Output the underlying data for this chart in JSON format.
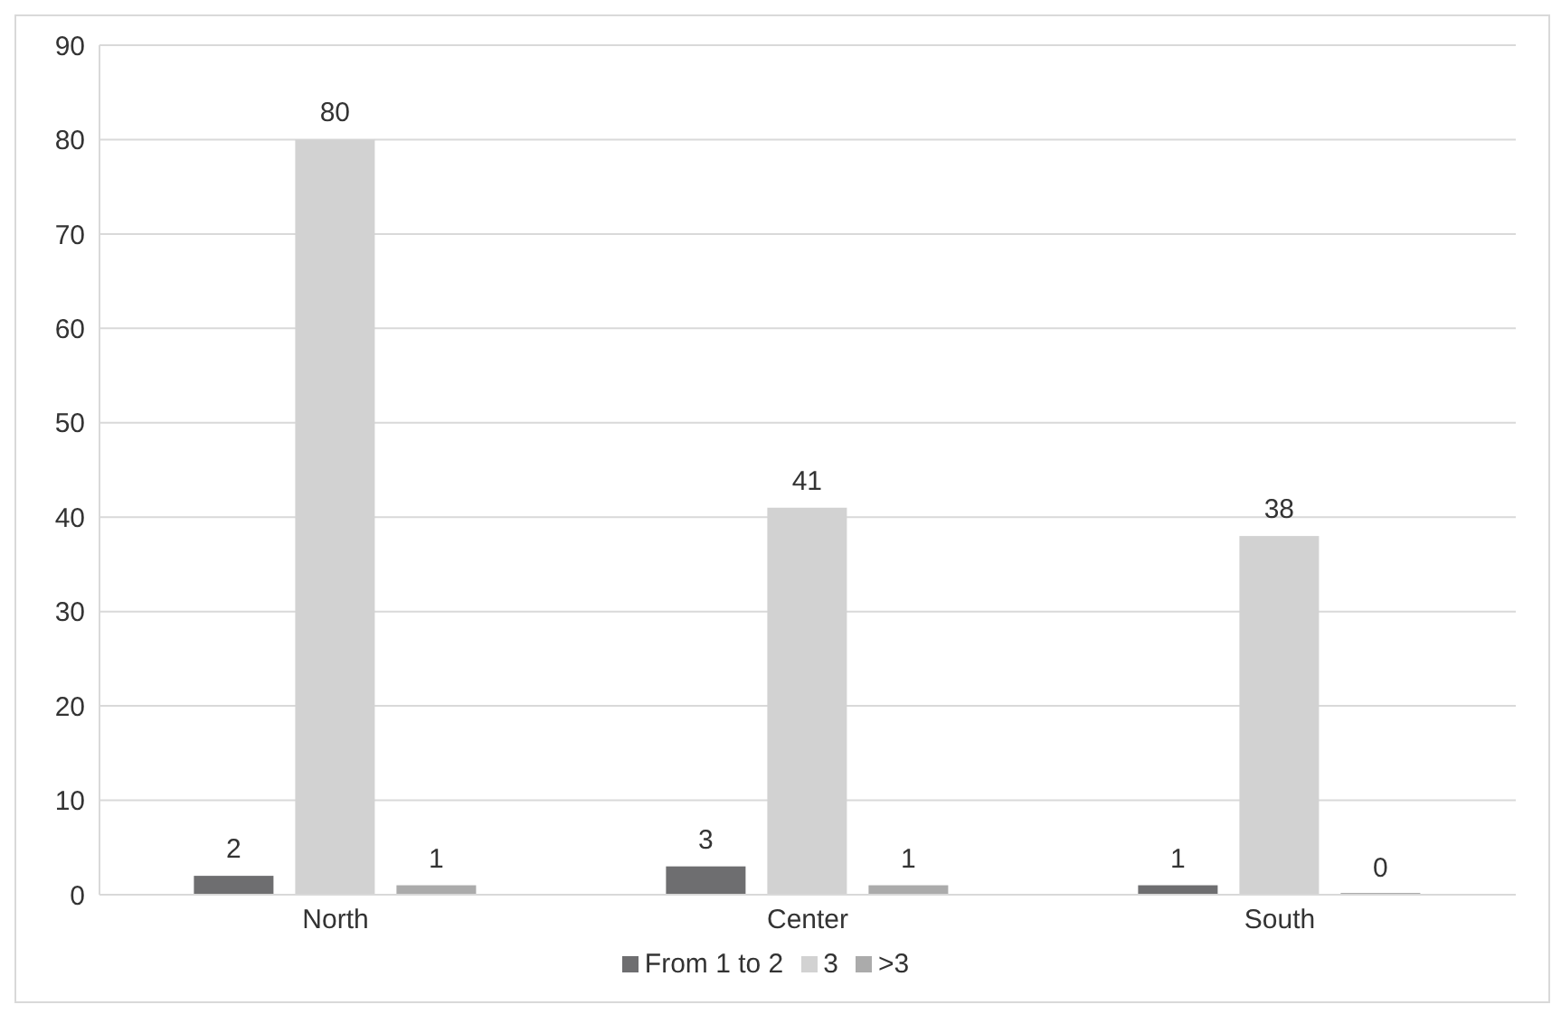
{
  "chart_data": {
    "type": "bar",
    "categories": [
      "North",
      "Center",
      "South"
    ],
    "series": [
      {
        "name": "From 1 to 2",
        "color": "#6e6e70",
        "values": [
          2,
          3,
          1
        ]
      },
      {
        "name": "3",
        "color": "#d2d2d2",
        "values": [
          80,
          41,
          38
        ]
      },
      {
        "name": ">3",
        "color": "#ababab",
        "values": [
          1,
          1,
          0
        ]
      }
    ],
    "ylim": [
      0,
      90
    ],
    "yticks": [
      0,
      10,
      20,
      30,
      40,
      50,
      60,
      70,
      80,
      90
    ],
    "grid": "y",
    "legend": "bottom",
    "data_labels": true
  }
}
